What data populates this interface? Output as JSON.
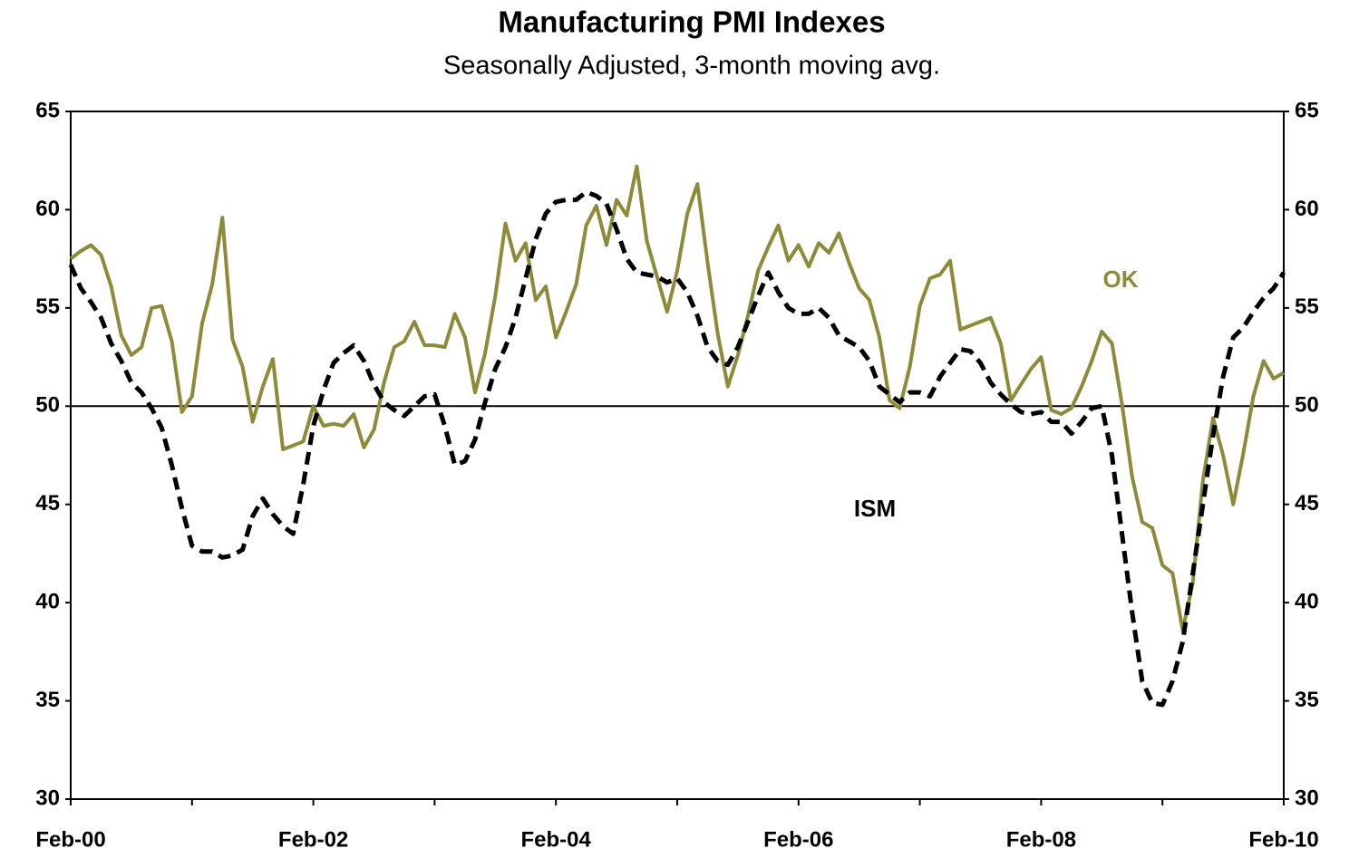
{
  "chart_data": {
    "type": "line",
    "title": "Manufacturing PMI Indexes",
    "subtitle": "Seasonally Adjusted, 3-month moving avg.",
    "categories": [
      "Feb-00",
      null,
      null,
      null,
      null,
      null,
      null,
      null,
      null,
      null,
      null,
      null,
      null,
      null,
      null,
      null,
      null,
      null,
      null,
      null,
      null,
      null,
      null,
      null,
      "Feb-02",
      null,
      null,
      null,
      null,
      null,
      null,
      null,
      null,
      null,
      null,
      null,
      null,
      null,
      null,
      null,
      null,
      null,
      null,
      null,
      null,
      null,
      null,
      null,
      "Feb-04",
      null,
      null,
      null,
      null,
      null,
      null,
      null,
      null,
      null,
      null,
      null,
      null,
      null,
      null,
      null,
      null,
      null,
      null,
      null,
      null,
      null,
      null,
      null,
      "Feb-06",
      null,
      null,
      null,
      null,
      null,
      null,
      null,
      null,
      null,
      null,
      null,
      null,
      null,
      null,
      null,
      null,
      null,
      null,
      null,
      null,
      null,
      null,
      null,
      "Feb-08",
      null,
      null,
      null,
      null,
      null,
      null,
      null,
      null,
      null,
      null,
      null,
      null,
      null,
      null,
      null,
      null,
      null,
      null,
      null,
      null,
      null,
      null,
      null,
      "Feb-10"
    ],
    "series": [
      {
        "name": "OK",
        "color": "#8b8b3a",
        "style": "solid",
        "values": [
          57.5,
          57.9,
          58.2,
          57.7,
          56.1,
          53.6,
          52.6,
          53.0,
          55.0,
          55.1,
          53.3,
          49.7,
          50.5,
          54.2,
          56.2,
          59.6,
          53.4,
          52.0,
          49.2,
          51.0,
          52.4,
          47.8,
          48.0,
          48.2,
          50.0,
          49.0,
          49.1,
          49.0,
          49.6,
          47.9,
          48.8,
          51.2,
          53.0,
          53.3,
          54.3,
          53.1,
          53.1,
          53.0,
          54.7,
          53.5,
          50.7,
          52.7,
          55.6,
          59.3,
          57.4,
          58.3,
          55.4,
          56.1,
          53.5,
          54.8,
          56.2,
          59.2,
          60.2,
          58.2,
          60.5,
          59.7,
          62.2,
          58.4,
          56.6,
          54.8,
          56.9,
          59.8,
          61.3,
          57.3,
          53.7,
          51.0,
          52.6,
          54.6,
          56.9,
          58.1,
          59.2,
          57.4,
          58.2,
          57.1,
          58.3,
          57.8,
          58.8,
          57.3,
          56.0,
          55.4,
          53.5,
          50.3,
          49.9,
          52.0,
          55.1,
          56.5,
          56.7,
          57.4,
          53.9,
          54.1,
          54.3,
          54.5,
          53.2,
          50.3,
          51.1,
          51.9,
          52.5,
          49.8,
          49.6,
          49.9,
          51.0,
          52.3,
          53.8,
          53.2,
          50.1,
          46.4,
          44.1,
          43.8,
          41.9,
          41.5,
          38.6,
          41.0,
          46.2,
          49.4,
          47.5,
          45.0,
          47.6,
          50.5,
          52.3,
          51.4,
          51.7
        ]
      },
      {
        "name": "ISM",
        "color": "#000000",
        "style": "dashed",
        "values": [
          57.2,
          56.0,
          55.3,
          54.5,
          53.2,
          52.3,
          51.2,
          50.7,
          49.9,
          48.9,
          47.0,
          44.8,
          42.9,
          42.6,
          42.6,
          42.3,
          42.4,
          42.7,
          44.4,
          45.3,
          44.5,
          43.9,
          43.5,
          46.0,
          49.0,
          50.8,
          52.2,
          52.7,
          53.1,
          52.3,
          51.1,
          50.2,
          49.8,
          49.5,
          50.0,
          50.5,
          50.6,
          49.0,
          47.0,
          47.2,
          48.3,
          50.2,
          51.9,
          53.0,
          54.5,
          56.5,
          58.5,
          59.8,
          60.4,
          60.5,
          60.5,
          60.9,
          60.7,
          60.3,
          59.0,
          57.5,
          56.8,
          56.7,
          56.6,
          56.3,
          56.5,
          55.8,
          54.6,
          53.0,
          52.3,
          52.1,
          53.0,
          54.3,
          55.6,
          56.8,
          55.8,
          55.0,
          54.7,
          54.7,
          55.0,
          54.5,
          53.6,
          53.3,
          53.0,
          52.3,
          51.0,
          50.6,
          50.2,
          50.7,
          50.7,
          50.5,
          51.5,
          52.2,
          52.9,
          52.8,
          52.2,
          51.2,
          50.6,
          50.1,
          49.7,
          49.6,
          49.7,
          49.2,
          49.2,
          48.6,
          49.2,
          49.9,
          50.0,
          47.5,
          43.5,
          39.5,
          36.0,
          34.9,
          34.8,
          36.0,
          38.0,
          41.5,
          45.0,
          48.5,
          51.5,
          53.5,
          54.0,
          54.8,
          55.5,
          56.0,
          56.8
        ]
      }
    ],
    "ylim": [
      30,
      65
    ],
    "yticks": [
      30,
      35,
      40,
      45,
      50,
      55,
      60,
      65
    ],
    "y2lim": [
      30,
      65
    ],
    "y2ticks": [
      30,
      35,
      40,
      45,
      50,
      55,
      60,
      65
    ],
    "hline": 50,
    "grid": false
  }
}
